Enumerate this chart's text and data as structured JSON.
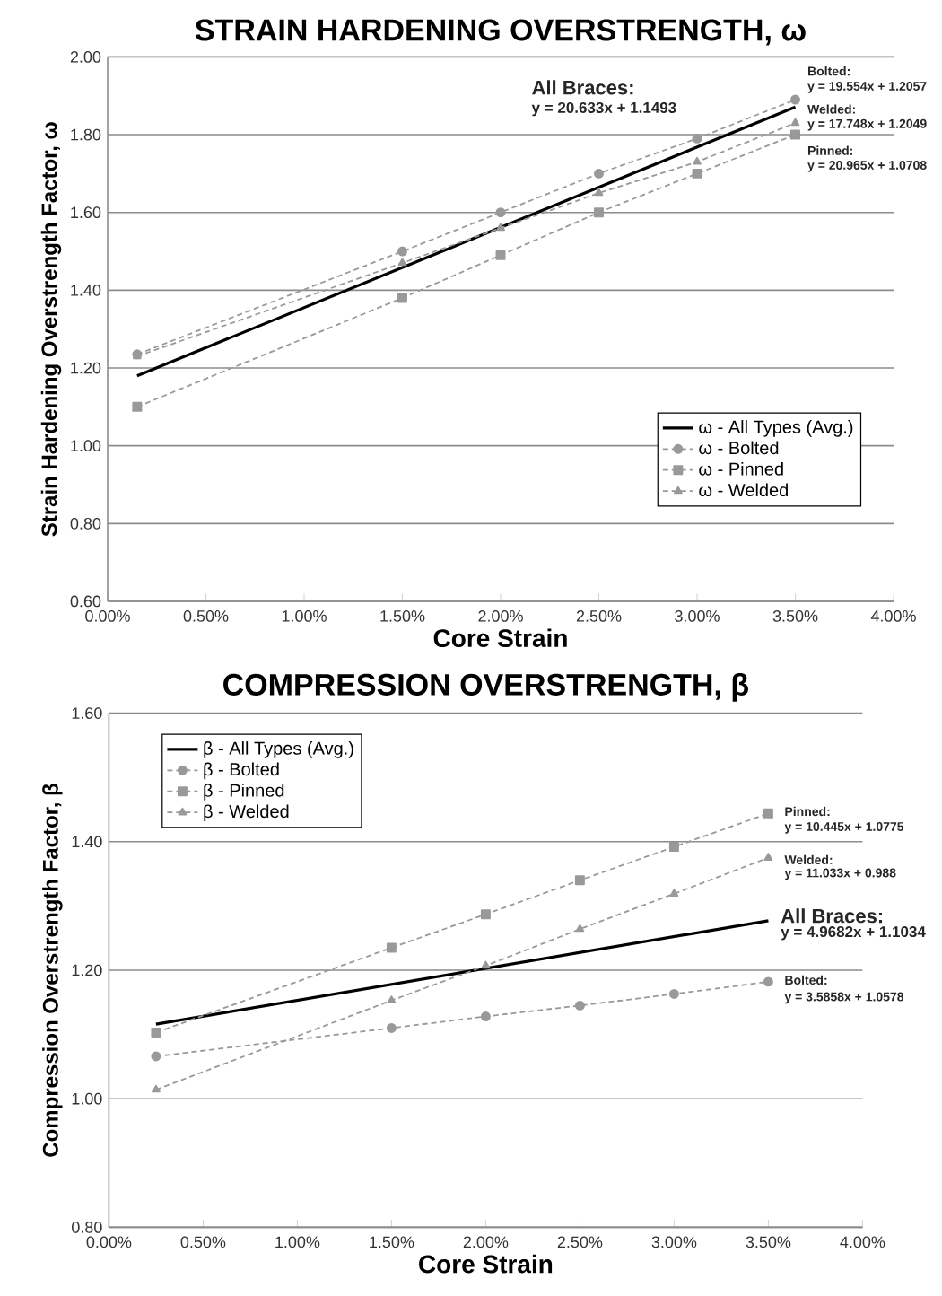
{
  "chart_data": [
    {
      "type": "line",
      "title": "STRAIN HARDENING OVERSTRENGTH, ω",
      "xlabel": "Core Strain",
      "ylabel": "Strain Hardening Overstrength Factor, ω",
      "series": [
        {
          "name": "ω - All Types (Avg.)",
          "color": "#000000",
          "marker": "none",
          "line_style": "solid",
          "x": [
            0.0015,
            0.035
          ],
          "values": [
            1.18,
            1.871
          ]
        },
        {
          "name": "ω - Bolted",
          "color": "#999999",
          "marker": "circle",
          "line_style": "dashed",
          "x": [
            0.0015,
            0.015,
            0.02,
            0.025,
            0.03,
            0.035
          ],
          "values": [
            1.235,
            1.5,
            1.6,
            1.7,
            1.79,
            1.89
          ]
        },
        {
          "name": "ω - Pinned",
          "color": "#999999",
          "marker": "square",
          "line_style": "dashed",
          "x": [
            0.0015,
            0.015,
            0.02,
            0.025,
            0.03,
            0.035
          ],
          "values": [
            1.1,
            1.38,
            1.49,
            1.6,
            1.7,
            1.8
          ]
        },
        {
          "name": "ω - Welded",
          "color": "#999999",
          "marker": "triangle",
          "line_style": "dashed",
          "x": [
            0.0015,
            0.015,
            0.02,
            0.025,
            0.03,
            0.035
          ],
          "values": [
            1.23,
            1.47,
            1.56,
            1.65,
            1.73,
            1.83
          ]
        }
      ],
      "xlim": [
        0,
        0.04
      ],
      "xticks": [
        {
          "value": 0,
          "label": "0.00%"
        },
        {
          "value": 0.005,
          "label": "0.50%"
        },
        {
          "value": 0.01,
          "label": "1.00%"
        },
        {
          "value": 0.015,
          "label": "1.50%"
        },
        {
          "value": 0.02,
          "label": "2.00%"
        },
        {
          "value": 0.025,
          "label": "2.50%"
        },
        {
          "value": 0.03,
          "label": "3.00%"
        },
        {
          "value": 0.035,
          "label": "3.50%"
        },
        {
          "value": 0.04,
          "label": "4.00%"
        }
      ],
      "ylim": [
        0.6,
        2.0
      ],
      "yticks": [
        {
          "value": 0.6,
          "label": "0.60"
        },
        {
          "value": 0.8,
          "label": "0.80"
        },
        {
          "value": 1.0,
          "label": "1.00"
        },
        {
          "value": 1.2,
          "label": "1.20"
        },
        {
          "value": 1.4,
          "label": "1.40"
        },
        {
          "value": 1.6,
          "label": "1.60"
        },
        {
          "value": 1.8,
          "label": "1.80"
        },
        {
          "value": 2.0,
          "label": "2.00"
        }
      ],
      "grid": "y",
      "legend": "right",
      "annotations": [
        "All Braces:",
        "y = 20.633x + 1.1493",
        "Bolted:",
        "y = 19.554x + 1.2057",
        "Welded:",
        "y = 17.748x + 1.2049",
        "Pinned:",
        "y = 20.965x + 1.0708"
      ]
    },
    {
      "type": "line",
      "title": "COMPRESSION OVERSTRENGTH, β",
      "xlabel": "Core Strain",
      "ylabel": "Compression Overstrength Factor, β",
      "series": [
        {
          "name": "β - All Types (Avg.)",
          "color": "#000000",
          "marker": "none",
          "line_style": "solid",
          "x": [
            0.0025,
            0.035
          ],
          "values": [
            1.116,
            1.277
          ]
        },
        {
          "name": "β - Bolted",
          "color": "#999999",
          "marker": "circle",
          "line_style": "dashed",
          "x": [
            0.0025,
            0.015,
            0.02,
            0.025,
            0.03,
            0.035
          ],
          "values": [
            1.066,
            1.11,
            1.128,
            1.145,
            1.163,
            1.182
          ]
        },
        {
          "name": "β - Pinned",
          "color": "#999999",
          "marker": "square",
          "line_style": "dashed",
          "x": [
            0.0025,
            0.015,
            0.02,
            0.025,
            0.03,
            0.035
          ],
          "values": [
            1.103,
            1.235,
            1.287,
            1.34,
            1.392,
            1.444
          ]
        },
        {
          "name": "β - Welded",
          "color": "#999999",
          "marker": "triangle",
          "line_style": "dashed",
          "x": [
            0.0025,
            0.015,
            0.02,
            0.025,
            0.03,
            0.035
          ],
          "values": [
            1.014,
            1.153,
            1.207,
            1.264,
            1.319,
            1.375
          ]
        }
      ],
      "xlim": [
        0,
        0.04
      ],
      "xticks": [
        {
          "value": 0,
          "label": "0.00%"
        },
        {
          "value": 0.005,
          "label": "0.50%"
        },
        {
          "value": 0.01,
          "label": "1.00%"
        },
        {
          "value": 0.015,
          "label": "1.50%"
        },
        {
          "value": 0.02,
          "label": "2.00%"
        },
        {
          "value": 0.025,
          "label": "2.50%"
        },
        {
          "value": 0.03,
          "label": "3.00%"
        },
        {
          "value": 0.035,
          "label": "3.50%"
        },
        {
          "value": 0.04,
          "label": "4.00%"
        }
      ],
      "ylim": [
        0.8,
        1.6
      ],
      "yticks": [
        {
          "value": 0.8,
          "label": "0.80"
        },
        {
          "value": 1.0,
          "label": "1.00"
        },
        {
          "value": 1.2,
          "label": "1.20"
        },
        {
          "value": 1.4,
          "label": "1.40"
        },
        {
          "value": 1.6,
          "label": "1.60"
        }
      ],
      "grid": "y",
      "legend": "top left",
      "annotations": [
        "Pinned:",
        "y = 10.445x + 1.0775",
        "Welded:",
        "y = 11.033x + 0.988",
        "All Braces:",
        "y = 4.9682x + 1.1034",
        "Bolted:",
        "y = 3.5858x + 1.0578"
      ]
    }
  ]
}
